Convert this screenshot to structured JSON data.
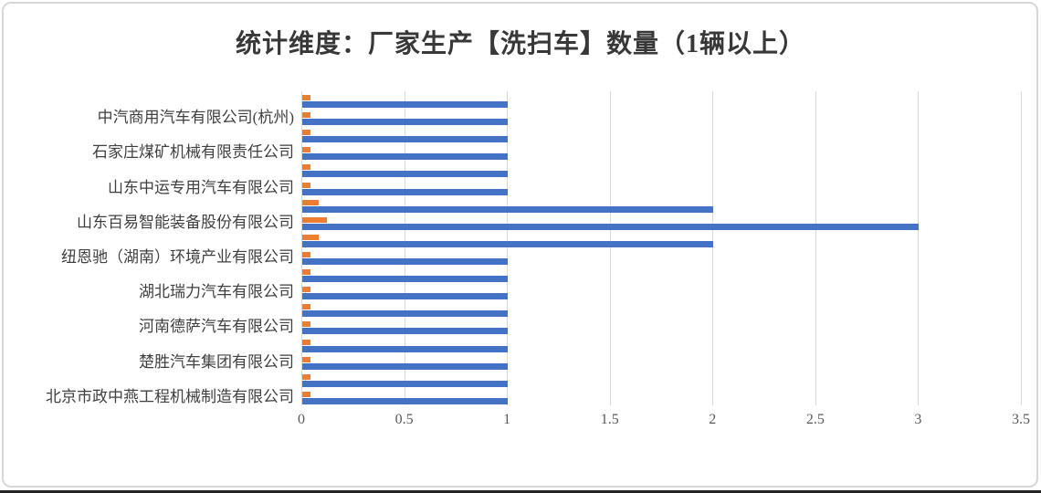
{
  "chart_data": {
    "type": "bar",
    "orientation": "horizontal",
    "title": "统计维度：厂家生产【洗扫车】数量（1辆以上）",
    "xlim": [
      0,
      3.5
    ],
    "x_tick_labels": [
      "0",
      "0.5",
      "1",
      "1.5",
      "2",
      "2.5",
      "3",
      "3.5"
    ],
    "x_tick_values": [
      0,
      0.5,
      1,
      1.5,
      2,
      2.5,
      3,
      3.5
    ],
    "grid": true,
    "legend": false,
    "categories": [
      "",
      "中汽商用汽车有限公司(杭州)",
      "",
      "石家庄煤矿机械有限责任公司",
      "",
      "山东中运专用汽车有限公司",
      "",
      "山东百易智能装备股份有限公司",
      "",
      "纽恩驰（湖南）环境产业有限公司",
      "",
      "湖北瑞力汽车有限公司",
      "",
      "河南德萨汽车有限公司",
      "",
      "楚胜汽车集团有限公司",
      "",
      "北京市政中燕工程机械制造有限公司"
    ],
    "series": [
      {
        "color": "#4472C4",
        "values": [
          1,
          1,
          1,
          1,
          1,
          1,
          2,
          3,
          2,
          1,
          1,
          1,
          1,
          1,
          1,
          1,
          1,
          1
        ]
      },
      {
        "color": "#ED7D31",
        "values": [
          0.04,
          0.04,
          0.04,
          0.04,
          0.04,
          0.04,
          0.08,
          0.12,
          0.08,
          0.04,
          0.04,
          0.04,
          0.04,
          0.04,
          0.04,
          0.04,
          0.04,
          0.04
        ]
      }
    ],
    "colors": {
      "gridline": "#d9d9d9",
      "axis_text": "#595959",
      "category_text": "#404040",
      "title_text": "#383838",
      "border": "#d7d7d7",
      "bottom_edge": "#262626"
    }
  }
}
